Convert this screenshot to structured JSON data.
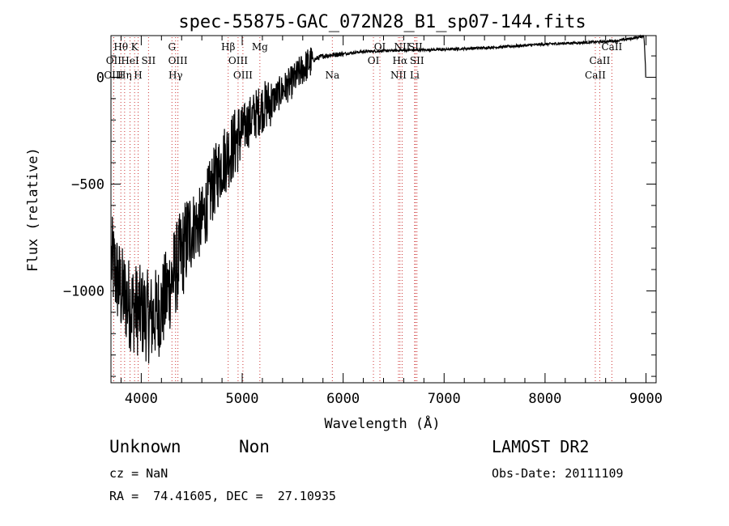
{
  "chart_data": {
    "type": "line",
    "title": "spec-55875-GAC_072N28_B1_sp07-144.fits",
    "xlabel": "Wavelength (Å)",
    "ylabel": "Flux (relative)",
    "xlim": [
      3700,
      9100
    ],
    "ylim": [
      -1430,
      195
    ],
    "xticks": [
      4000,
      5000,
      6000,
      7000,
      8000,
      9000
    ],
    "yticks": [
      0,
      -500,
      -1000
    ],
    "grid": false,
    "legend": "none",
    "line_color": "#000000",
    "line_marker_color": "#cc3333",
    "spectrum_anchors": [
      [
        3700,
        -850
      ],
      [
        3800,
        -1000
      ],
      [
        3900,
        -1070
      ],
      [
        4000,
        -1100
      ],
      [
        4100,
        -1130
      ],
      [
        4200,
        -1080
      ],
      [
        4300,
        -950
      ],
      [
        4400,
        -830
      ],
      [
        4500,
        -700
      ],
      [
        4600,
        -680
      ],
      [
        4700,
        -520
      ],
      [
        4800,
        -400
      ],
      [
        4900,
        -330
      ],
      [
        5000,
        -250
      ],
      [
        5100,
        -190
      ],
      [
        5200,
        -140
      ],
      [
        5300,
        -110
      ],
      [
        5400,
        -60
      ],
      [
        5500,
        -20
      ],
      [
        5600,
        40
      ],
      [
        5700,
        80
      ],
      [
        5800,
        100
      ],
      [
        5900,
        105
      ],
      [
        6000,
        110
      ],
      [
        6200,
        120
      ],
      [
        6500,
        125
      ],
      [
        7000,
        130
      ],
      [
        7500,
        140
      ],
      [
        8000,
        155
      ],
      [
        8500,
        165
      ],
      [
        8700,
        170
      ],
      [
        8900,
        185
      ],
      [
        8950,
        190
      ],
      [
        8980,
        195
      ],
      [
        9000,
        0
      ]
    ],
    "lines": [
      {
        "label": "Hθ",
        "wavelength": 3798,
        "row": 0
      },
      {
        "label": "K",
        "wavelength": 3934,
        "row": 0
      },
      {
        "label": "G",
        "wavelength": 4304,
        "row": 0
      },
      {
        "label": "Hβ",
        "wavelength": 4861,
        "row": 0
      },
      {
        "label": "Mg",
        "wavelength": 5175,
        "row": 0
      },
      {
        "label": "OI",
        "wavelength": 6364,
        "row": 0
      },
      {
        "label": "NII",
        "wavelength": 6584,
        "row": 0
      },
      {
        "label": "SII",
        "wavelength": 6716,
        "row": 0
      },
      {
        "label": "CaII",
        "wavelength": 8662,
        "row": 0
      },
      {
        "label": "OII",
        "wavelength": 3727,
        "row": 1
      },
      {
        "label": "HeI",
        "wavelength": 3889,
        "row": 1
      },
      {
        "label": "SII",
        "wavelength": 4072,
        "row": 1
      },
      {
        "label": "OIII",
        "wavelength": 4363,
        "row": 1
      },
      {
        "label": "OIII",
        "wavelength": 4959,
        "row": 1
      },
      {
        "label": "OI",
        "wavelength": 6300,
        "row": 1
      },
      {
        "label": "Hα",
        "wavelength": 6563,
        "row": 1
      },
      {
        "label": "SII",
        "wavelength": 6731,
        "row": 1
      },
      {
        "label": "CaII",
        "wavelength": 8542,
        "row": 1
      },
      {
        "label": "OIII",
        "wavelength": 3727,
        "row": 2
      },
      {
        "label": "Hη",
        "wavelength": 3835,
        "row": 2
      },
      {
        "label": "H",
        "wavelength": 3969,
        "row": 2
      },
      {
        "label": "Hγ",
        "wavelength": 4340,
        "row": 2
      },
      {
        "label": "OIII",
        "wavelength": 5007,
        "row": 2
      },
      {
        "label": "Na",
        "wavelength": 5893,
        "row": 2
      },
      {
        "label": "NII",
        "wavelength": 6548,
        "row": 2
      },
      {
        "label": "Li",
        "wavelength": 6708,
        "row": 2
      },
      {
        "label": "CaII",
        "wavelength": 8498,
        "row": 2
      }
    ]
  },
  "info": {
    "class": "Unknown",
    "subclass": "Non",
    "survey": "LAMOST DR2",
    "cz": "cz = NaN",
    "obs_date": "Obs-Date: 20111109",
    "radec": "RA =  74.41605, DEC =  27.10935"
  }
}
